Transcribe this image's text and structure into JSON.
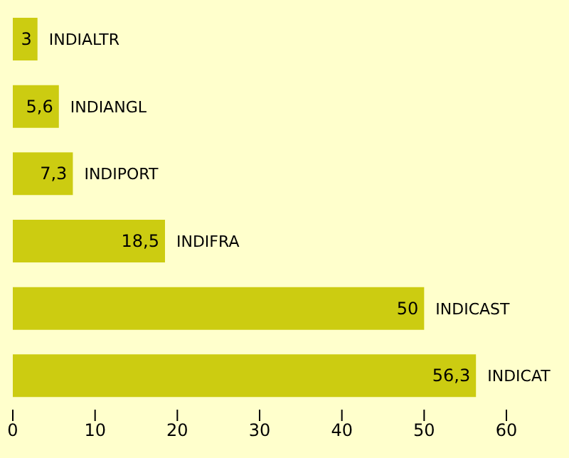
{
  "chart_data": {
    "type": "bar",
    "orientation": "horizontal",
    "categories": [
      "INDIALTR",
      "INDIANGL",
      "INDIPORT",
      "INDIFRA",
      "INDICAST",
      "INDICAT"
    ],
    "values": [
      3,
      5.6,
      7.3,
      18.5,
      50,
      56.3
    ],
    "value_labels": [
      "3",
      "5,6",
      "7,3",
      "18,5",
      "50",
      "56,3"
    ],
    "color": "#cccc11",
    "xlim": [
      0,
      60
    ],
    "xticks": [
      0,
      10,
      20,
      30,
      40,
      50,
      60
    ],
    "grid": false,
    "legend": false
  }
}
